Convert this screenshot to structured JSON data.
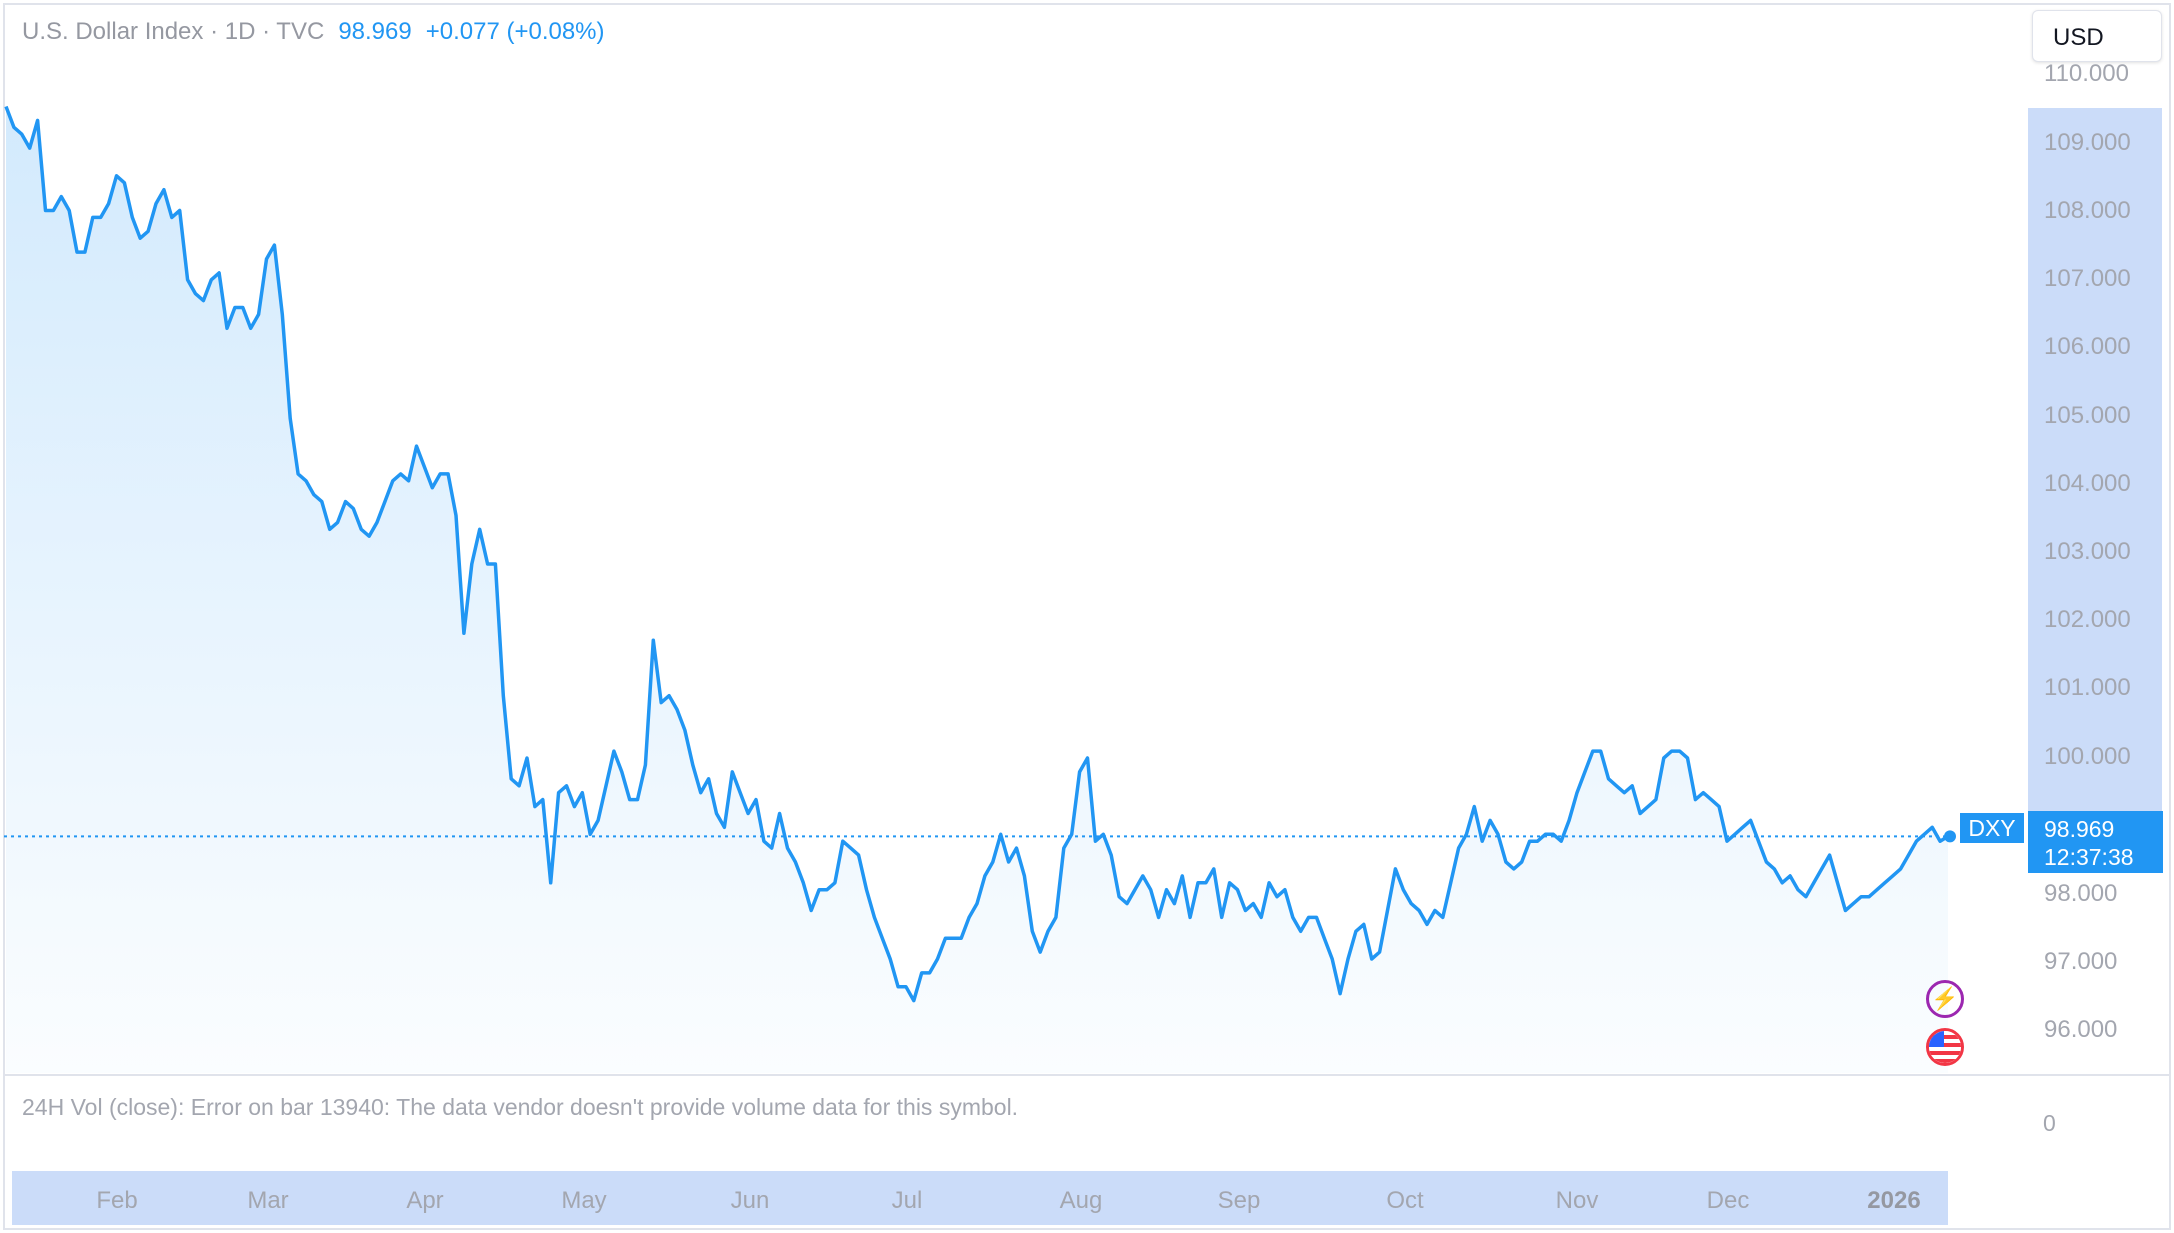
{
  "legend": {
    "symbol": "U.S. Dollar Index · 1D · TVC",
    "last": "98.969",
    "change": "+0.077 (+0.08%)"
  },
  "currency_button": "USD",
  "y_axis_ticks": [
    "110.000",
    "109.000",
    "108.000",
    "107.000",
    "106.000",
    "105.000",
    "104.000",
    "103.000",
    "102.000",
    "101.000",
    "100.000",
    "98.000",
    "97.000",
    "96.000"
  ],
  "price_badge": {
    "ticker": "DXY",
    "price": "98.969",
    "countdown": "12:37:38"
  },
  "volume_pane": {
    "message": "24H Vol (close): Error on bar 13940: The data vendor doesn't provide volume data for this symbol.",
    "zero_label": "0"
  },
  "time_axis": [
    "Feb",
    "Mar",
    "Apr",
    "May",
    "Jun",
    "Jul",
    "Aug",
    "Sep",
    "Oct",
    "Nov",
    "Dec",
    "2026"
  ],
  "events": [
    "bolt-icon",
    "us-flag-icon"
  ],
  "colors": {
    "line": "#2196f3",
    "badge": "#2196f3",
    "axis_highlight": "#cbdcf9",
    "bolt": "#9c27b0",
    "flag": "#f23645"
  },
  "chart_data": {
    "type": "area",
    "series": [
      {
        "values": [
          109.5,
          109.2,
          109.1,
          108.9,
          109.3,
          108.0,
          108.0,
          108.2,
          108.0,
          107.4,
          107.4,
          107.9,
          107.9,
          108.1,
          108.5,
          108.4,
          107.9,
          107.6,
          107.7,
          108.1,
          108.3,
          107.9,
          108.0,
          107.0,
          106.8,
          106.7,
          107.0,
          107.1,
          106.3,
          106.6,
          106.6,
          106.3,
          106.5,
          107.3,
          107.5,
          106.5,
          105.0,
          104.2,
          104.1,
          103.9,
          103.8,
          103.4,
          103.5,
          103.8,
          103.7,
          103.4,
          103.3,
          103.5,
          103.8,
          104.1,
          104.2,
          104.1,
          104.6,
          104.3,
          104.0,
          104.2,
          104.2,
          103.6,
          101.9,
          102.9,
          103.4,
          102.9,
          102.9,
          101.0,
          99.8,
          99.7,
          100.1,
          99.4,
          99.5,
          98.3,
          99.6,
          99.7,
          99.4,
          99.6,
          99.0,
          99.2,
          99.7,
          100.2,
          99.9,
          99.5,
          99.5,
          100.0,
          101.8,
          100.9,
          101.0,
          100.8,
          100.5,
          100.0,
          99.6,
          99.8,
          99.3,
          99.1,
          99.9,
          99.6,
          99.3,
          99.5,
          98.9,
          98.8,
          99.3,
          98.8,
          98.6,
          98.3,
          97.9,
          98.2,
          98.2,
          98.3,
          98.9,
          98.8,
          98.7,
          98.2,
          97.8,
          97.5,
          97.2,
          96.8,
          96.8,
          96.6,
          97.0,
          97.0,
          97.2,
          97.5,
          97.5,
          97.5,
          97.8,
          98.0,
          98.4,
          98.6,
          99.0,
          98.6,
          98.8,
          98.4,
          97.6,
          97.3,
          97.6,
          97.8,
          98.8,
          99.0,
          99.9,
          100.1,
          98.9,
          99.0,
          98.7,
          98.1,
          98.0,
          98.2,
          98.4,
          98.2,
          97.8,
          98.2,
          98.0,
          98.4,
          97.8,
          98.3,
          98.3,
          98.5,
          97.8,
          98.3,
          98.2,
          97.9,
          98.0,
          97.8,
          98.3,
          98.1,
          98.2,
          97.8,
          97.6,
          97.8,
          97.8,
          97.5,
          97.2,
          96.7,
          97.2,
          97.6,
          97.7,
          97.2,
          97.3,
          97.9,
          98.5,
          98.2,
          98.0,
          97.9,
          97.7,
          97.9,
          97.8,
          98.3,
          98.8,
          99.0,
          99.4,
          98.9,
          99.2,
          99.0,
          98.6,
          98.5,
          98.6,
          98.9,
          98.9,
          99.0,
          99.0,
          98.9,
          99.2,
          99.6,
          99.9,
          100.2,
          100.2,
          99.8,
          99.7,
          99.6,
          99.7,
          99.3,
          99.4,
          99.5,
          100.1,
          100.2,
          100.2,
          100.1,
          99.5,
          99.6,
          99.5,
          99.4,
          98.9,
          99.0,
          99.1,
          99.2,
          98.9,
          98.6,
          98.5,
          98.3,
          98.4,
          98.2,
          98.1,
          98.3,
          98.5,
          98.7,
          98.3,
          97.9,
          98.0,
          98.1,
          98.1,
          98.2,
          98.3,
          98.4,
          98.5,
          98.7,
          98.9,
          99.0,
          99.1,
          98.9,
          98.969
        ]
      }
    ],
    "ylim": [
      95.7,
      110.2
    ],
    "last_price": 98.969,
    "grid": false,
    "price_line": "dotted"
  }
}
